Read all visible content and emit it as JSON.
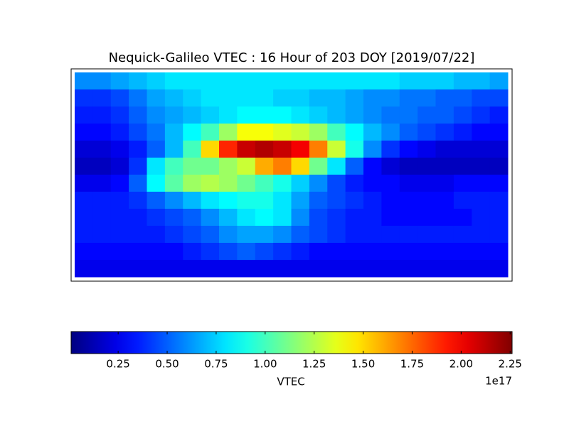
{
  "chart_data": {
    "type": "heatmap",
    "title": "Nequick-Galileo VTEC : 16 Hour of 203 DOY [2019/07/22]",
    "colormap": "jet",
    "xlim": [
      -180,
      180
    ],
    "ylim": [
      -90,
      90
    ],
    "x": [
      -172.5,
      -157.5,
      -142.5,
      -127.5,
      -112.5,
      -97.5,
      -82.5,
      -67.5,
      -52.5,
      -37.5,
      -22.5,
      -7.5,
      7.5,
      22.5,
      37.5,
      52.5,
      67.5,
      82.5,
      97.5,
      112.5,
      127.5,
      142.5,
      157.5,
      172.5
    ],
    "y": [
      82.5,
      67.5,
      52.5,
      37.5,
      22.5,
      7.5,
      -7.5,
      -22.5,
      -37.5,
      -52.5,
      -67.5,
      -82.5
    ],
    "values": [
      [
        0.6,
        0.6,
        0.65,
        0.7,
        0.75,
        0.8,
        0.8,
        0.8,
        0.8,
        0.8,
        0.8,
        0.8,
        0.8,
        0.8,
        0.8,
        0.8,
        0.8,
        0.8,
        0.75,
        0.75,
        0.75,
        0.7,
        0.7,
        0.65
      ],
      [
        0.4,
        0.4,
        0.45,
        0.55,
        0.65,
        0.7,
        0.75,
        0.8,
        0.8,
        0.8,
        0.8,
        0.75,
        0.75,
        0.7,
        0.7,
        0.65,
        0.6,
        0.6,
        0.55,
        0.55,
        0.5,
        0.5,
        0.45,
        0.45
      ],
      [
        0.35,
        0.35,
        0.4,
        0.5,
        0.6,
        0.65,
        0.7,
        0.75,
        0.8,
        0.85,
        0.85,
        0.85,
        0.8,
        0.75,
        0.7,
        0.65,
        0.6,
        0.55,
        0.55,
        0.5,
        0.5,
        0.45,
        0.4,
        0.35
      ],
      [
        0.3,
        0.3,
        0.35,
        0.45,
        0.55,
        0.7,
        0.85,
        1.0,
        1.2,
        1.4,
        1.4,
        1.35,
        1.3,
        1.2,
        1.0,
        0.85,
        0.7,
        0.6,
        0.5,
        0.45,
        0.4,
        0.35,
        0.3,
        0.3
      ],
      [
        0.2,
        0.2,
        0.25,
        0.35,
        0.5,
        0.7,
        1.0,
        1.5,
        1.9,
        2.1,
        2.15,
        2.1,
        2.0,
        1.7,
        1.3,
        0.9,
        0.6,
        0.4,
        0.3,
        0.25,
        0.2,
        0.2,
        0.2,
        0.2
      ],
      [
        0.15,
        0.15,
        0.2,
        0.4,
        0.8,
        1.0,
        1.1,
        1.1,
        1.2,
        1.3,
        1.6,
        1.7,
        1.5,
        1.1,
        0.8,
        0.5,
        0.3,
        0.2,
        0.15,
        0.15,
        0.15,
        0.15,
        0.15,
        0.15
      ],
      [
        0.25,
        0.25,
        0.3,
        0.5,
        0.85,
        1.05,
        1.2,
        1.25,
        1.2,
        1.1,
        1.0,
        0.9,
        0.75,
        0.6,
        0.45,
        0.35,
        0.3,
        0.3,
        0.25,
        0.25,
        0.25,
        0.3,
        0.3,
        0.3
      ],
      [
        0.35,
        0.35,
        0.35,
        0.4,
        0.5,
        0.6,
        0.7,
        0.8,
        0.85,
        0.9,
        0.9,
        0.8,
        0.65,
        0.5,
        0.45,
        0.4,
        0.35,
        0.3,
        0.3,
        0.3,
        0.3,
        0.35,
        0.35,
        0.35
      ],
      [
        0.35,
        0.35,
        0.35,
        0.35,
        0.4,
        0.45,
        0.5,
        0.6,
        0.7,
        0.8,
        0.85,
        0.8,
        0.6,
        0.45,
        0.4,
        0.35,
        0.35,
        0.3,
        0.3,
        0.3,
        0.3,
        0.3,
        0.35,
        0.35
      ],
      [
        0.35,
        0.35,
        0.35,
        0.35,
        0.35,
        0.4,
        0.45,
        0.5,
        0.6,
        0.65,
        0.65,
        0.6,
        0.5,
        0.45,
        0.4,
        0.35,
        0.35,
        0.35,
        0.35,
        0.35,
        0.35,
        0.35,
        0.35,
        0.35
      ],
      [
        0.3,
        0.3,
        0.3,
        0.3,
        0.3,
        0.3,
        0.35,
        0.4,
        0.45,
        0.5,
        0.45,
        0.4,
        0.35,
        0.3,
        0.3,
        0.3,
        0.3,
        0.3,
        0.3,
        0.3,
        0.3,
        0.3,
        0.3,
        0.3
      ],
      [
        0.25,
        0.25,
        0.25,
        0.25,
        0.25,
        0.25,
        0.25,
        0.25,
        0.25,
        0.25,
        0.25,
        0.25,
        0.25,
        0.25,
        0.25,
        0.25,
        0.25,
        0.25,
        0.25,
        0.25,
        0.25,
        0.25,
        0.25,
        0.25
      ]
    ],
    "colorbar": {
      "label": "VTEC",
      "offset_label": "1e17",
      "lim": [
        0.01,
        2.26
      ],
      "ticks": [
        0.25,
        {
          "value": 0.5,
          "label": "0.50"
        },
        0.75,
        {
          "value": 1,
          "label": "1.00"
        },
        1.25,
        {
          "value": 1.5,
          "label": "1.50"
        },
        1.75,
        {
          "value": 2,
          "label": "2.00"
        },
        2.25
      ]
    }
  }
}
